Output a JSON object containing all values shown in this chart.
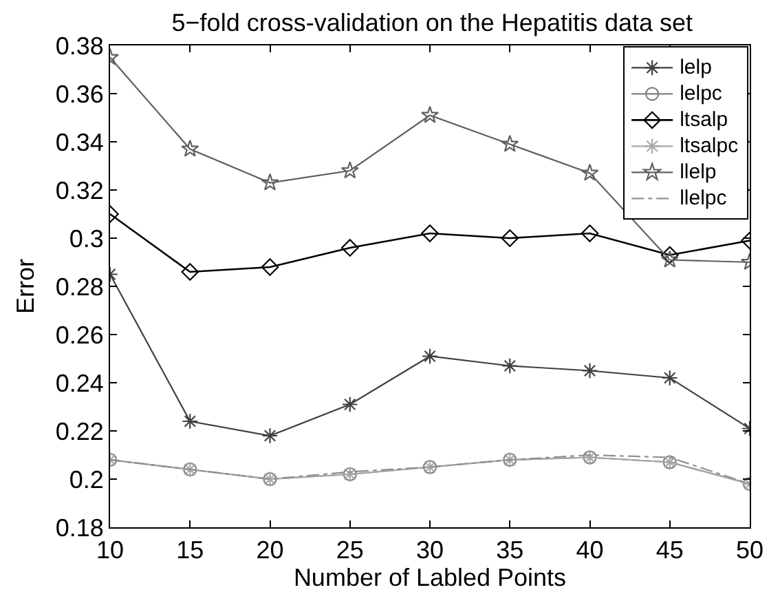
{
  "chart_data": {
    "type": "line",
    "title": "5−fold cross-validation on the Hepatitis data set",
    "xlabel": "Number of Labled Points",
    "ylabel": "Error",
    "x": [
      10,
      15,
      20,
      25,
      30,
      35,
      40,
      45,
      50
    ],
    "series": [
      {
        "name": "lelp",
        "color": "#404040",
        "marker": "cross",
        "line_style": "solid",
        "values": [
          0.285,
          0.224,
          0.218,
          0.231,
          0.251,
          0.247,
          0.245,
          0.242,
          0.221
        ]
      },
      {
        "name": "lelpc",
        "color": "#808080",
        "marker": "circle",
        "line_style": "solid",
        "values": [
          0.208,
          0.204,
          0.2,
          0.202,
          0.205,
          0.208,
          0.209,
          0.207,
          0.198
        ]
      },
      {
        "name": "ltsalp",
        "color": "#000000",
        "marker": "diamond",
        "line_style": "solid",
        "values": [
          0.31,
          0.286,
          0.288,
          0.296,
          0.302,
          0.3,
          0.302,
          0.293,
          0.299
        ]
      },
      {
        "name": "ltsalpc",
        "color": "#a8a8a8",
        "marker": "cross",
        "line_style": "solid",
        "values": [
          0.208,
          0.204,
          0.2,
          0.202,
          0.205,
          0.208,
          0.209,
          0.207,
          0.198
        ]
      },
      {
        "name": "llelp",
        "color": "#606060",
        "marker": "star",
        "line_style": "solid",
        "values": [
          0.375,
          0.337,
          0.323,
          0.328,
          0.351,
          0.339,
          0.327,
          0.291,
          0.29
        ]
      },
      {
        "name": "llelpc",
        "color": "#909090",
        "marker": "none",
        "line_style": "dashed",
        "values": [
          0.208,
          0.204,
          0.2,
          0.203,
          0.205,
          0.208,
          0.21,
          0.209,
          0.198
        ]
      }
    ],
    "xlim": [
      10,
      50
    ],
    "xticks": [
      10,
      15,
      20,
      25,
      30,
      35,
      40,
      45,
      50
    ],
    "ylim": [
      0.18,
      0.38
    ],
    "yticks": [
      0.18,
      0.2,
      0.22,
      0.24,
      0.26,
      0.28,
      0.3,
      0.32,
      0.34,
      0.36,
      0.38
    ],
    "grid": false,
    "legend": "top right"
  }
}
